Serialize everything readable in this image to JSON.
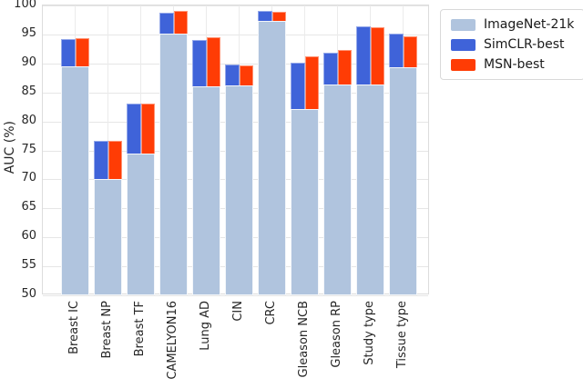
{
  "figure": {
    "ylabel": "AUC (%)",
    "colors": {
      "imagenet": "#b0c4de",
      "simclr": "#3f63d9",
      "msn": "#ff3c05",
      "grid": "#e6e6e6",
      "tick_text": "#262626"
    }
  },
  "chart_data": {
    "type": "bar",
    "title": "",
    "xlabel": "",
    "ylabel": "AUC (%)",
    "ylim": [
      50,
      100
    ],
    "yticks": [
      50,
      55,
      60,
      65,
      70,
      75,
      80,
      85,
      90,
      95,
      100
    ],
    "grid": true,
    "legend_position": "upper right, outside plot",
    "bar_style": "overlaid (baseline wide bar with two half-width bars rising above it)",
    "categories": [
      "Breast IC",
      "Breast NP",
      "Breast TF",
      "CAMELYON16",
      "Lung AD",
      "CIN",
      "CRC",
      "Gleason NCB",
      "Gleason RP",
      "Study type",
      "Tissue type"
    ],
    "series": [
      {
        "name": "ImageNet-21k",
        "color": "#b0c4de",
        "values": [
          89.5,
          70.0,
          74.4,
          95.2,
          86.0,
          86.2,
          97.3,
          82.2,
          86.4,
          86.3,
          89.4
        ]
      },
      {
        "name": "SimCLR-best",
        "color": "#3f63d9",
        "values": [
          94.2,
          76.7,
          83.0,
          98.7,
          94.0,
          89.8,
          99.0,
          90.2,
          91.9,
          96.4,
          95.2
        ]
      },
      {
        "name": "MSN-best",
        "color": "#ff3c05",
        "values": [
          94.3,
          76.6,
          83.0,
          99.0,
          94.5,
          89.7,
          98.9,
          91.3,
          92.3,
          96.3,
          94.7
        ]
      }
    ]
  }
}
